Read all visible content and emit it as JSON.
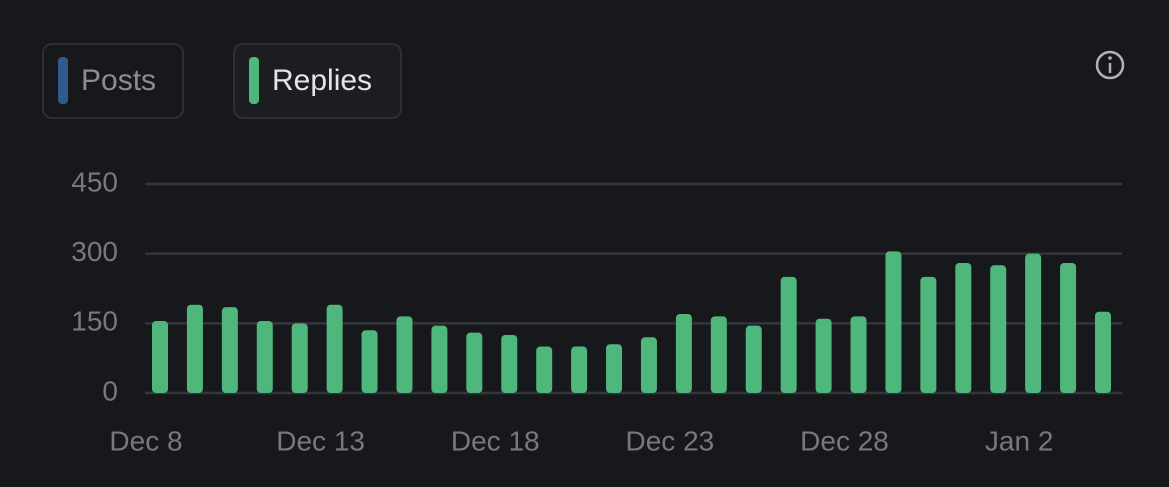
{
  "chart_data": {
    "type": "bar",
    "inactive_series": [
      {
        "name": "Posts",
        "color": "#2f5b8c"
      }
    ],
    "series": [
      {
        "name": "Replies",
        "color": "#4fb77b",
        "values": [
          155,
          190,
          185,
          155,
          150,
          190,
          135,
          165,
          145,
          130,
          125,
          100,
          100,
          105,
          120,
          170,
          165,
          145,
          250,
          160,
          165,
          305,
          250,
          280,
          275,
          300,
          280,
          175
        ]
      }
    ],
    "categories": [
      "Dec 8",
      null,
      null,
      null,
      null,
      "Dec 13",
      null,
      null,
      null,
      null,
      "Dec 18",
      null,
      null,
      null,
      null,
      "Dec 23",
      null,
      null,
      null,
      null,
      "Dec 28",
      null,
      null,
      null,
      null,
      "Jan 2",
      null,
      null
    ],
    "ylim": [
      0,
      450
    ],
    "yticks": [
      0,
      150,
      300,
      450
    ],
    "grid": true
  }
}
